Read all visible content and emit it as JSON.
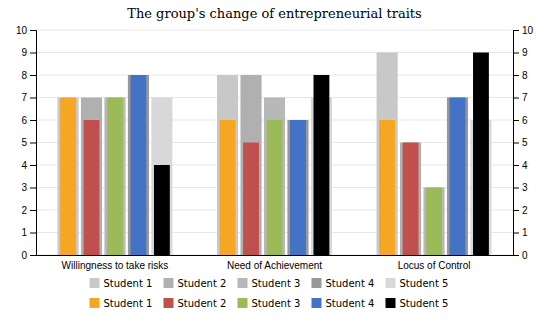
{
  "chart_data": {
    "type": "bar",
    "title": "The group's  change  of  entrepreneurial  traits",
    "categories": [
      "Willingness to take risks",
      "Need of Achievement",
      "Locus of Control"
    ],
    "series": [
      {
        "name": "Student 1",
        "color": "#c8c8c8",
        "values": [
          7,
          8,
          9
        ]
      },
      {
        "name": "Student 2",
        "color": "#b0b0b0",
        "values": [
          7,
          8,
          5
        ]
      },
      {
        "name": "Student 3",
        "color": "#b8b8b8",
        "values": [
          7,
          7,
          3
        ]
      },
      {
        "name": "Student 4",
        "color": "#989898",
        "values": [
          8,
          6,
          7
        ]
      },
      {
        "name": "Student 5",
        "color": "#d8d8d8",
        "values": [
          7,
          7,
          6
        ]
      },
      {
        "name": "Student 1",
        "color": "#f5a623",
        "values": [
          7,
          6,
          6
        ]
      },
      {
        "name": "Student 2",
        "color": "#c0504d",
        "values": [
          6,
          5,
          5
        ]
      },
      {
        "name": "Student 3",
        "color": "#9bbb59",
        "values": [
          7,
          6,
          3
        ]
      },
      {
        "name": "Student 4",
        "color": "#4472c4",
        "values": [
          8,
          6,
          7
        ]
      },
      {
        "name": "Student 5",
        "color": "#000000",
        "values": [
          4,
          8,
          9
        ]
      }
    ],
    "ylim": [
      0,
      10
    ],
    "yticks": [
      0,
      1,
      2,
      3,
      4,
      5,
      6,
      7,
      8,
      9,
      10
    ],
    "y2lim": [
      0,
      10
    ],
    "y2ticks": [
      0,
      1,
      2,
      3,
      4,
      5,
      6,
      7,
      8,
      9,
      10
    ],
    "grid": true,
    "legend": "bottom"
  }
}
